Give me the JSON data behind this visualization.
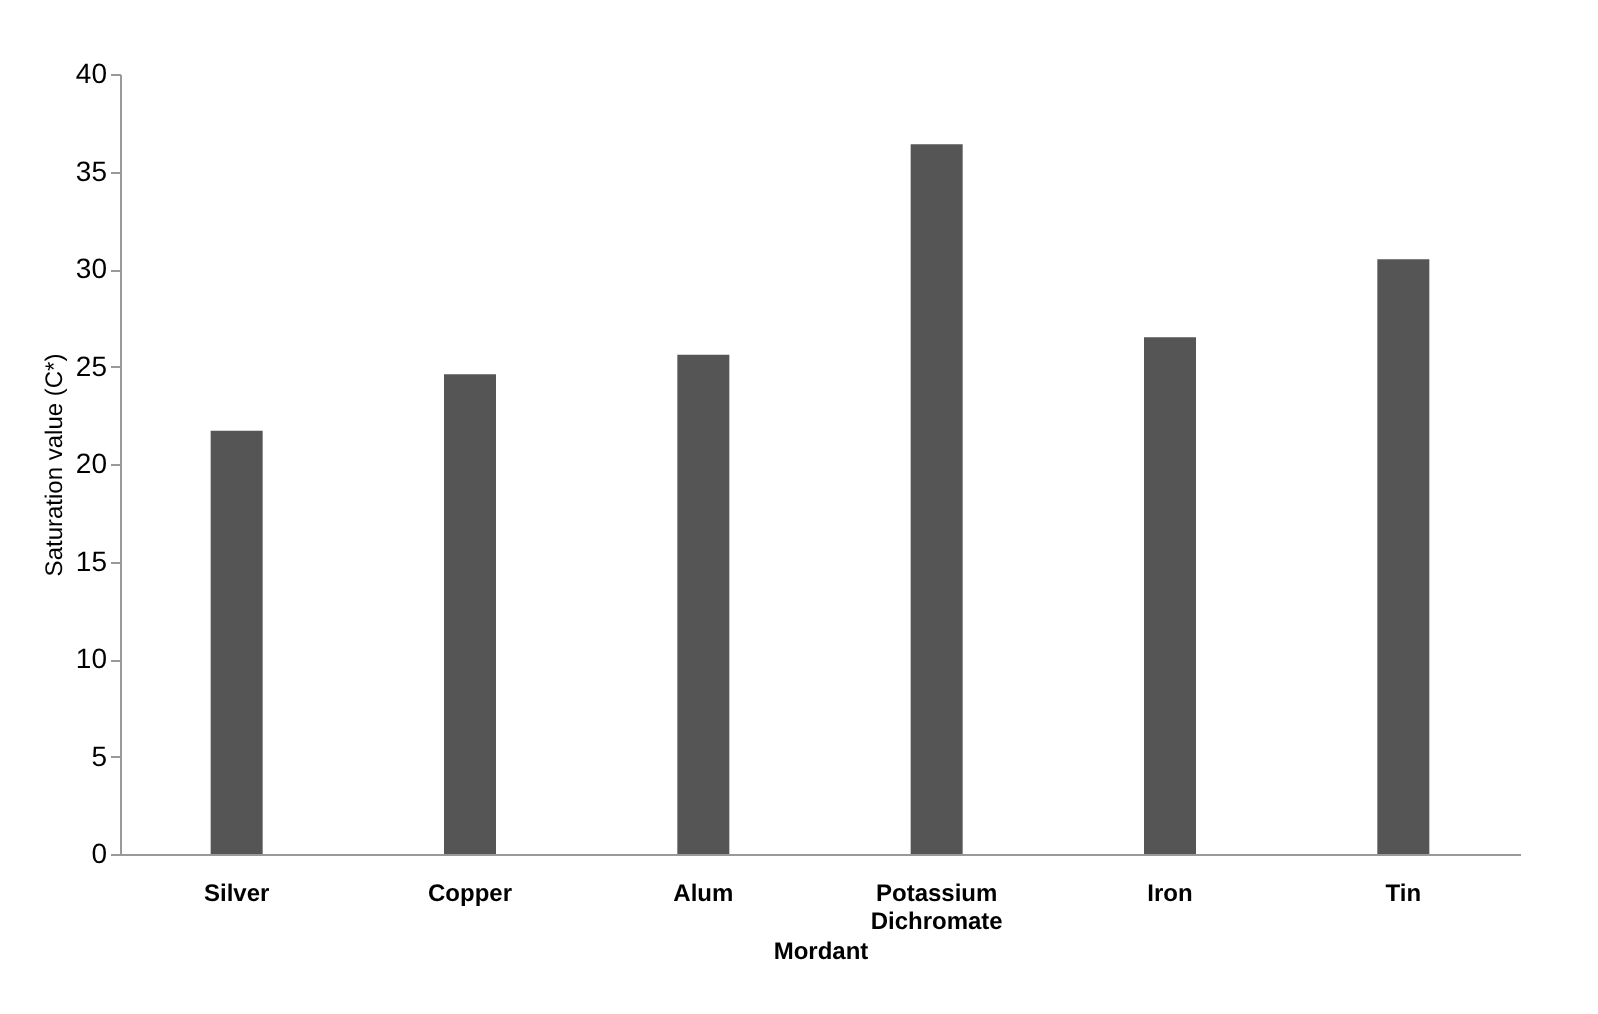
{
  "chart_data": {
    "type": "bar",
    "xlabel": "Mordant",
    "ylabel": "Saturation value (C*)",
    "categories": [
      "Silver",
      "Copper",
      "Alum",
      "Potassium Dichromate",
      "Iron",
      "Tin"
    ],
    "values": [
      21.7,
      24.6,
      25.6,
      36.4,
      26.5,
      30.5
    ],
    "color": "#555555",
    "ylim": [
      0,
      40
    ],
    "yticks": [
      0,
      5,
      10,
      15,
      20,
      25,
      30,
      35,
      40
    ],
    "grid": false
  }
}
